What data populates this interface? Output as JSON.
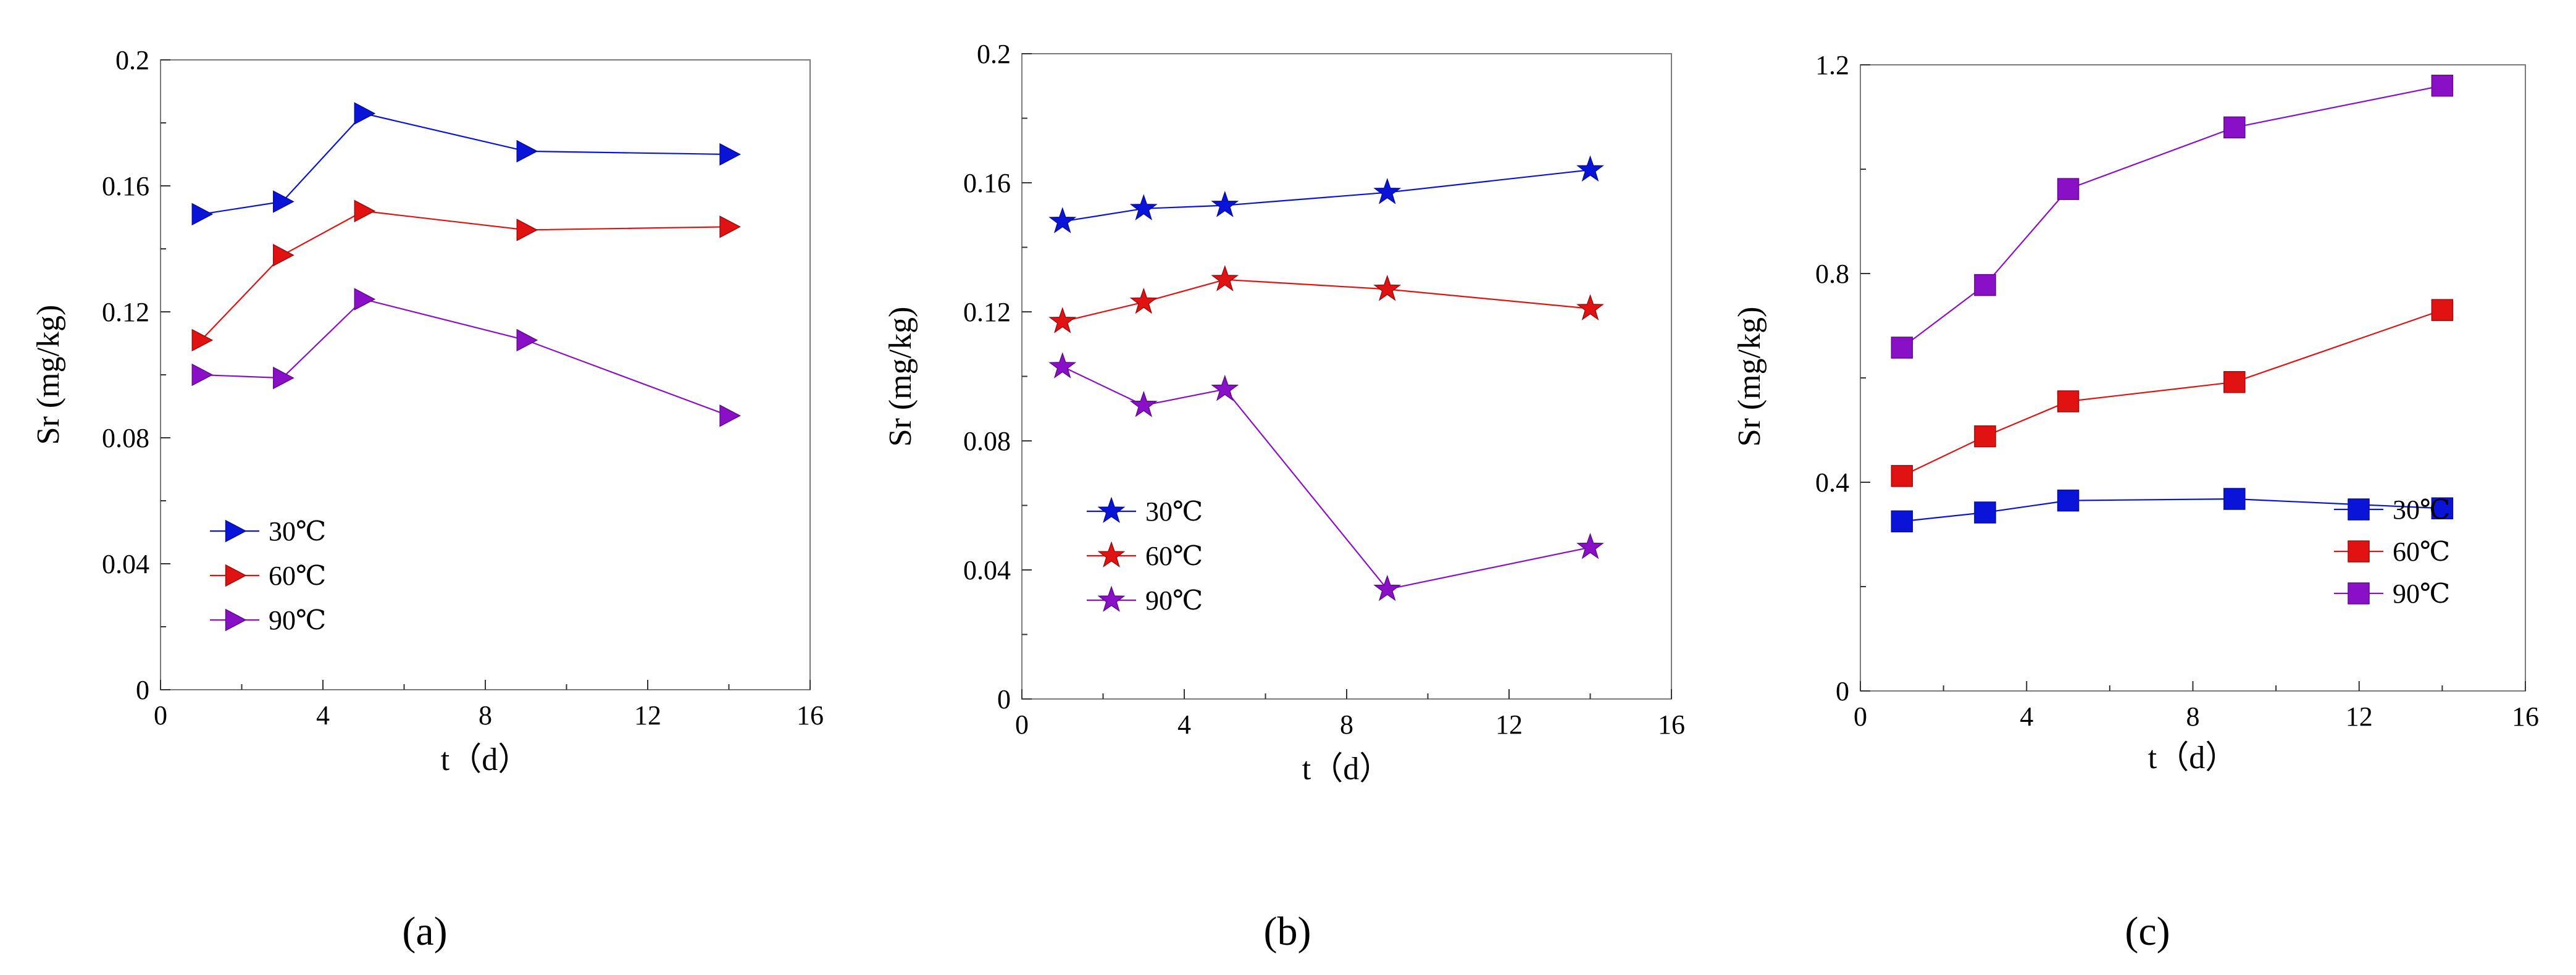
{
  "figure": {
    "panel_labels": [
      "(a)",
      "(b)",
      "(c)"
    ]
  },
  "chart_data": [
    {
      "type": "line",
      "panel": "(a)",
      "marker": "triangle-right",
      "xlabel": "t（d）",
      "ylabel": "Sr (mg/kg)",
      "xlim": [
        0,
        16
      ],
      "ylim": [
        0,
        0.2
      ],
      "xticks": [
        0,
        4,
        8,
        12,
        16
      ],
      "xtick_labels": [
        "0",
        "4",
        "8",
        "12",
        "16"
      ],
      "yticks": [
        0,
        0.04,
        0.08,
        0.12,
        0.16,
        0.2
      ],
      "ytick_labels": [
        "0",
        "0.04",
        "0.08",
        "0.12",
        "0.16",
        "0.2"
      ],
      "legend_position": "bottom-left",
      "series": [
        {
          "name": "30℃",
          "color": "#0a14d8",
          "x": [
            1,
            3,
            5,
            9,
            14
          ],
          "values": [
            0.151,
            0.155,
            0.183,
            0.171,
            0.17
          ]
        },
        {
          "name": "60℃",
          "color": "#e01212",
          "x": [
            1,
            3,
            5,
            9,
            14
          ],
          "values": [
            0.111,
            0.138,
            0.152,
            0.146,
            0.147
          ]
        },
        {
          "name": "90℃",
          "color": "#8a10c8",
          "x": [
            1,
            3,
            5,
            9,
            14
          ],
          "values": [
            0.1,
            0.099,
            0.124,
            0.111,
            0.087
          ]
        }
      ]
    },
    {
      "type": "line",
      "panel": "(b)",
      "marker": "star",
      "xlabel": "t（d）",
      "ylabel": "Sr (mg/kg)",
      "xlim": [
        0,
        16
      ],
      "ylim": [
        0,
        0.2
      ],
      "xticks": [
        0,
        4,
        8,
        12,
        16
      ],
      "xtick_labels": [
        "0",
        "4",
        "8",
        "12",
        "16"
      ],
      "yticks": [
        0,
        0.04,
        0.08,
        0.12,
        0.16,
        0.2
      ],
      "ytick_labels": [
        "0",
        "0.04",
        "0.08",
        "0.12",
        "0.16",
        "0.2"
      ],
      "legend_position": "bottom-left",
      "series": [
        {
          "name": "30℃",
          "color": "#0a14d8",
          "x": [
            1,
            3,
            5,
            9,
            14
          ],
          "values": [
            0.148,
            0.152,
            0.153,
            0.157,
            0.164
          ]
        },
        {
          "name": "60℃",
          "color": "#e01212",
          "x": [
            1,
            3,
            5,
            9,
            14
          ],
          "values": [
            0.117,
            0.123,
            0.13,
            0.127,
            0.121
          ]
        },
        {
          "name": "90℃",
          "color": "#8a10c8",
          "x": [
            1,
            3,
            5,
            9,
            14
          ],
          "values": [
            0.103,
            0.091,
            0.096,
            0.034,
            0.047
          ]
        }
      ]
    },
    {
      "type": "line",
      "panel": "(c)",
      "marker": "square",
      "xlabel": "t（d）",
      "ylabel": "Sr (mg/kg)",
      "xlim": [
        0,
        16
      ],
      "ylim": [
        0,
        1.2
      ],
      "xticks": [
        0,
        4,
        8,
        12,
        16
      ],
      "xtick_labels": [
        "0",
        "4",
        "8",
        "12",
        "16"
      ],
      "yticks": [
        0,
        0.4,
        0.8,
        1.2
      ],
      "ytick_labels": [
        "0",
        "0.4",
        "0.8",
        "1.2"
      ],
      "legend_position": "bottom-right",
      "series": [
        {
          "name": "30℃",
          "color": "#0a14d8",
          "x": [
            1,
            3,
            5,
            9,
            14
          ],
          "values": [
            0.325,
            0.342,
            0.365,
            0.368,
            0.35
          ]
        },
        {
          "name": "60℃",
          "color": "#e01212",
          "x": [
            1,
            3,
            5,
            9,
            14
          ],
          "values": [
            0.412,
            0.488,
            0.555,
            0.592,
            0.73
          ]
        },
        {
          "name": "90℃",
          "color": "#8a10c8",
          "x": [
            1,
            3,
            5,
            9,
            14
          ],
          "values": [
            0.658,
            0.778,
            0.962,
            1.08,
            1.16
          ]
        }
      ]
    }
  ]
}
